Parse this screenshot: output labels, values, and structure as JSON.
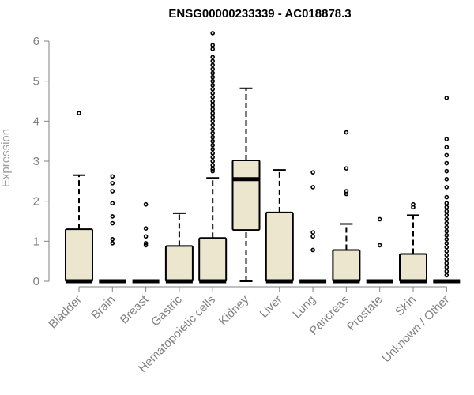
{
  "chart_data": {
    "type": "box",
    "title": "ENSG00000233339 - AC018878.3",
    "ylabel": "Expression",
    "xlabel": "",
    "ylim": [
      0,
      6
    ],
    "yticks": [
      "0",
      "1",
      "2",
      "3",
      "4",
      "5",
      "6"
    ],
    "box_fill": "#ede6cf",
    "categories": [
      "Bladder",
      "Brain",
      "Breast",
      "Gastric",
      "Hematopoietic cells",
      "Kidney",
      "Liver",
      "Lung",
      "Pancreas",
      "Prostate",
      "Skin",
      "Unknown / Other"
    ],
    "boxes": [
      {
        "category": "Bladder",
        "min": 0,
        "q1": 0,
        "median": 0,
        "q3": 1.3,
        "max": 2.65,
        "outliers": [
          4.2
        ]
      },
      {
        "category": "Brain",
        "min": 0,
        "q1": 0,
        "median": 0,
        "q3": 0,
        "max": 0,
        "outliers": [
          2.62,
          2.45,
          2.25,
          1.95,
          1.62,
          1.45,
          1.05,
          0.95
        ]
      },
      {
        "category": "Breast",
        "min": 0,
        "q1": 0,
        "median": 0,
        "q3": 0,
        "max": 0,
        "outliers": [
          1.92,
          1.32,
          1.12,
          0.95,
          0.9
        ]
      },
      {
        "category": "Gastric",
        "min": 0,
        "q1": 0,
        "median": 0,
        "q3": 0.88,
        "max": 1.7,
        "outliers": []
      },
      {
        "category": "Hematopoietic cells",
        "min": 0,
        "q1": 0,
        "median": 0,
        "q3": 1.08,
        "max": 2.58,
        "outliers": [
          6.2,
          5.9,
          5.8,
          5.6,
          5.5,
          5.4,
          5.3,
          5.2,
          5.1,
          5.0,
          4.9,
          4.8,
          4.7,
          4.6,
          4.5,
          4.4,
          4.3,
          4.2,
          4.1,
          4.0,
          3.9,
          3.8,
          3.7,
          3.6,
          3.5,
          3.4,
          3.3,
          3.2,
          3.1,
          3.0,
          2.9,
          2.8,
          2.75
        ]
      },
      {
        "category": "Kidney",
        "min": 0,
        "q1": 1.28,
        "median": 2.55,
        "q3": 3.02,
        "max": 4.82,
        "outliers": []
      },
      {
        "category": "Liver",
        "min": 0,
        "q1": 0,
        "median": 0,
        "q3": 1.72,
        "max": 2.78,
        "outliers": []
      },
      {
        "category": "Lung",
        "min": 0,
        "q1": 0,
        "median": 0,
        "q3": 0,
        "max": 0,
        "outliers": [
          2.72,
          2.35,
          1.22,
          1.12,
          0.78
        ]
      },
      {
        "category": "Pancreas",
        "min": 0,
        "q1": 0,
        "median": 0,
        "q3": 0.78,
        "max": 1.43,
        "outliers": [
          3.72,
          2.82,
          2.25,
          2.18
        ]
      },
      {
        "category": "Prostate",
        "min": 0,
        "q1": 0,
        "median": 0,
        "q3": 0,
        "max": 0,
        "outliers": [
          1.55,
          0.9
        ]
      },
      {
        "category": "Skin",
        "min": 0,
        "q1": 0,
        "median": 0,
        "q3": 0.68,
        "max": 1.65,
        "outliers": [
          1.92,
          1.85
        ]
      },
      {
        "category": "Unknown / Other",
        "min": 0,
        "q1": 0,
        "median": 0,
        "q3": 0,
        "max": 0,
        "outliers": [
          4.58,
          3.55,
          3.35,
          3.15,
          2.95,
          2.75,
          2.55,
          2.35,
          2.1,
          1.95,
          1.85,
          1.75,
          1.65,
          1.55,
          1.45,
          1.35,
          1.25,
          1.15,
          1.05,
          0.95,
          0.85,
          0.75,
          0.65,
          0.55,
          0.45,
          0.35,
          0.25,
          0.15
        ]
      }
    ]
  }
}
